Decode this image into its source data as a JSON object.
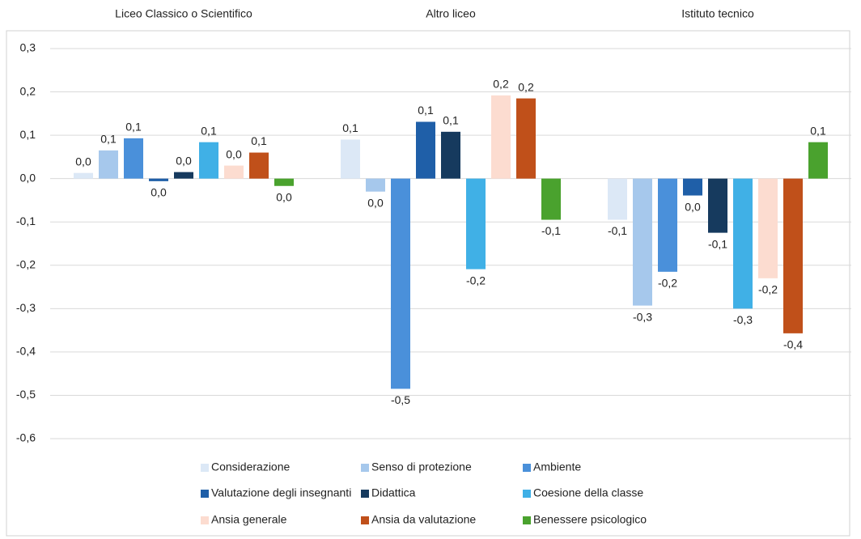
{
  "chart_data": {
    "type": "bar",
    "categories": [
      "Liceo Classico o Scientifico",
      "Altro liceo",
      "Istituto tecnico"
    ],
    "series": [
      {
        "name": "Considerazione",
        "color": "#dce8f6",
        "values": [
          0.013,
          0.09,
          -0.095
        ],
        "value_labels": [
          "0,0",
          "0,1",
          "-0,1"
        ]
      },
      {
        "name": "Senso di protezione",
        "color": "#a6c8ec",
        "values": [
          0.065,
          -0.03,
          -0.293
        ],
        "value_labels": [
          "0,1",
          "0,0",
          "-0,3"
        ]
      },
      {
        "name": "Ambiente",
        "color": "#4a90da",
        "values": [
          0.093,
          -0.485,
          -0.215
        ],
        "value_labels": [
          "0,1",
          "-0,5",
          "-0,2"
        ]
      },
      {
        "name": "Valutazione degli insegnanti",
        "color": "#1f5fa8",
        "values": [
          -0.006,
          0.131,
          -0.039
        ],
        "value_labels": [
          "0,0",
          "0,1",
          "0,0"
        ]
      },
      {
        "name": "Didattica",
        "color": "#163a5e",
        "values": [
          0.015,
          0.108,
          -0.125
        ],
        "value_labels": [
          "0,0",
          "0,1",
          "-0,1"
        ]
      },
      {
        "name": "Coesione della classe",
        "color": "#40b0e6",
        "values": [
          0.084,
          -0.209,
          -0.3
        ],
        "value_labels": [
          "0,1",
          "-0,2",
          "-0,3"
        ]
      },
      {
        "name": "Ansia generale",
        "color": "#fcdcd0",
        "values": [
          0.03,
          0.192,
          -0.23
        ],
        "value_labels": [
          "0,0",
          "0,2",
          "-0,2"
        ]
      },
      {
        "name": "Ansia da valutazione",
        "color": "#c0501a",
        "values": [
          0.06,
          0.185,
          -0.357
        ],
        "value_labels": [
          "0,1",
          "0,2",
          "-0,4"
        ]
      },
      {
        "name": "Benessere psicologico",
        "color": "#4aa22e",
        "values": [
          -0.017,
          -0.095,
          0.084
        ],
        "value_labels": [
          "0,0",
          "-0,1",
          "0,1"
        ]
      }
    ],
    "ylim": [
      -0.6,
      0.3
    ],
    "yticks": [
      {
        "value": -0.6,
        "label": "-0,6"
      },
      {
        "value": -0.5,
        "label": "-0,5"
      },
      {
        "value": -0.4,
        "label": "-0,4"
      },
      {
        "value": -0.3,
        "label": "-0,3"
      },
      {
        "value": -0.2,
        "label": "-0,2"
      },
      {
        "value": -0.1,
        "label": "-0,1"
      },
      {
        "value": 0,
        "label": "0,0"
      },
      {
        "value": 0.1,
        "label": "0,1"
      },
      {
        "value": 0.2,
        "label": "0,2"
      },
      {
        "value": 0.3,
        "label": "0,3"
      }
    ],
    "grid": true,
    "legend": "bottom"
  }
}
